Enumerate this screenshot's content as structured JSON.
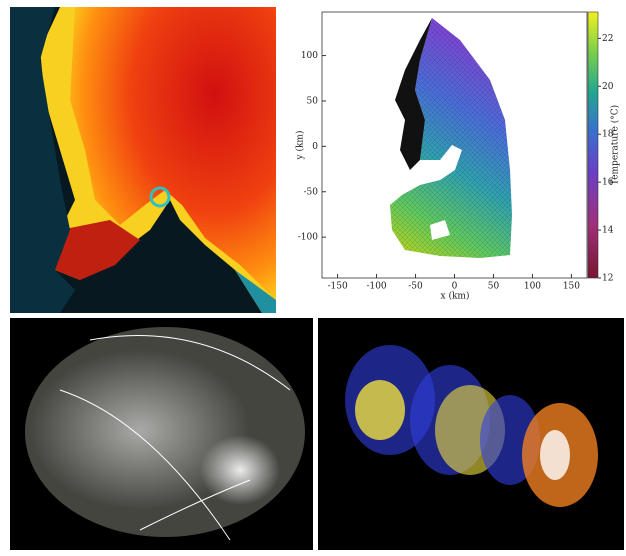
{
  "plot": {
    "x_label": "x (km)",
    "y_label": "y (km)",
    "colorbar_label": "Temperature (°C)",
    "xlim": [
      -170,
      170
    ],
    "ylim": [
      -145,
      148
    ],
    "xticks": [
      -150,
      -100,
      -50,
      0,
      50,
      100,
      150
    ],
    "yticks": [
      -100,
      -50,
      0,
      50,
      100
    ],
    "colorbar_lim": [
      12,
      23.1
    ],
    "colorbar_ticks": [
      12,
      14,
      16,
      18,
      20,
      22
    ]
  }
}
